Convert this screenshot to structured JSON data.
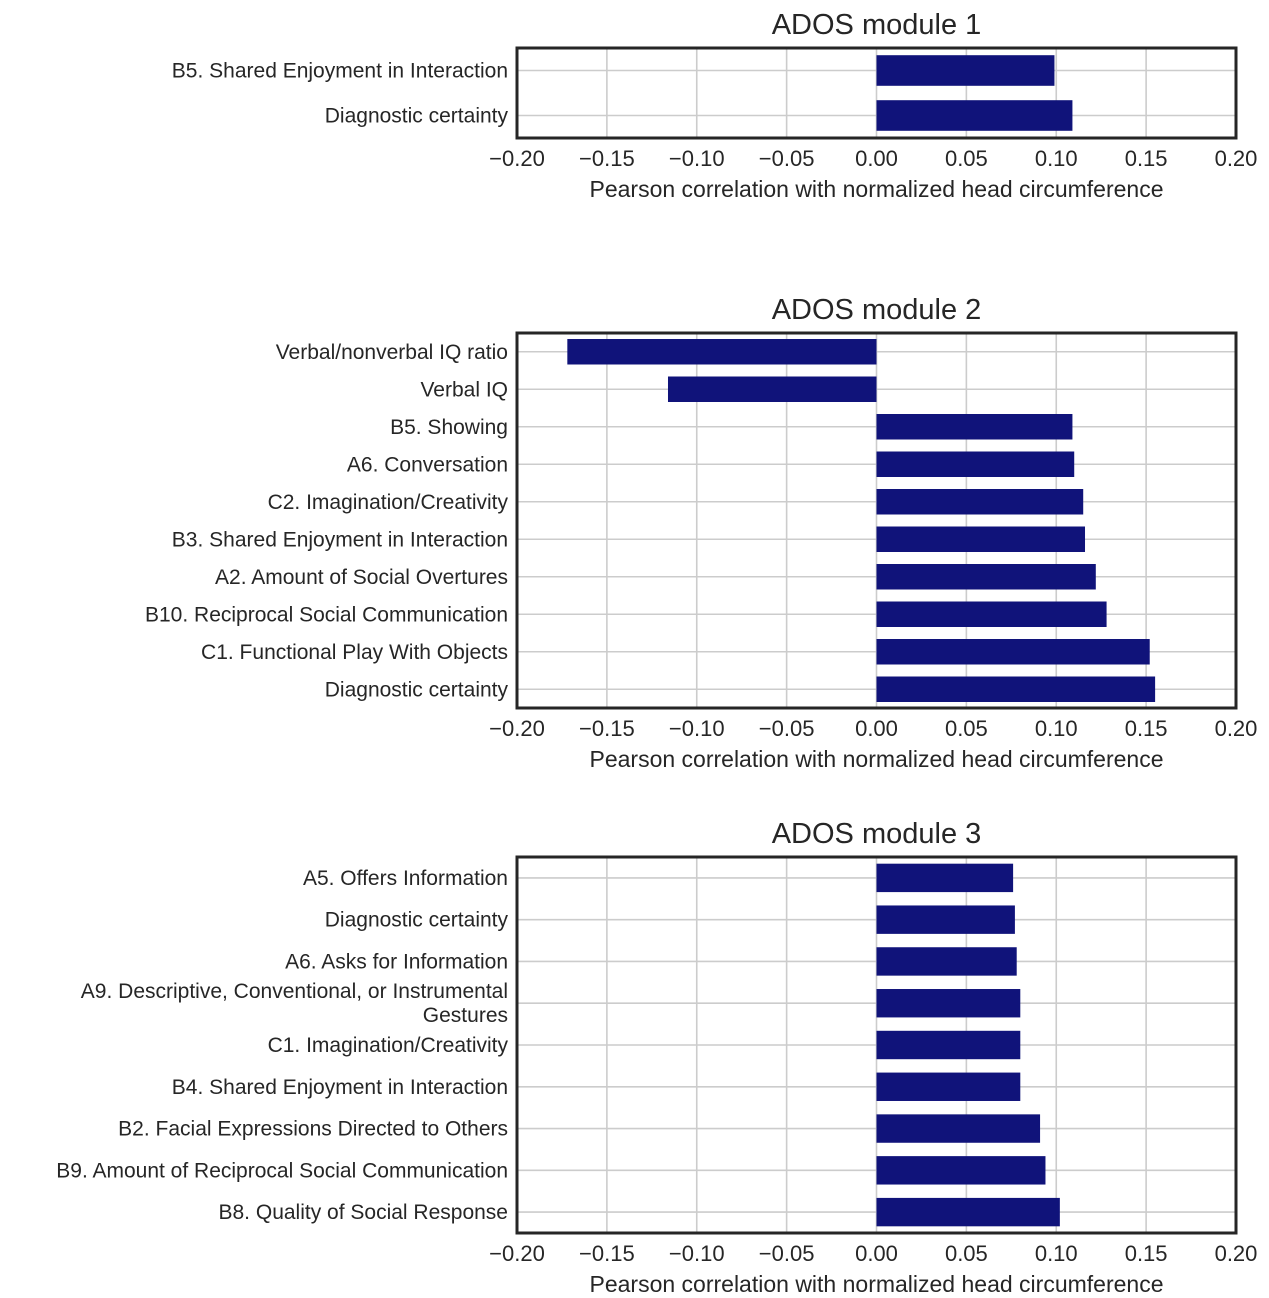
{
  "chart_data": [
    {
      "type": "bar",
      "orientation": "horizontal",
      "title": "ADOS module 1",
      "categories": [
        "B5. Shared Enjoyment in Interaction",
        "Diagnostic certainty"
      ],
      "values": [
        0.099,
        0.109
      ],
      "xlabel": "Pearson correlation with normalized head circumference",
      "xlim": [
        -0.2,
        0.2
      ],
      "xticks": [
        -0.2,
        -0.15,
        -0.1,
        -0.05,
        0.0,
        0.05,
        0.1,
        0.15,
        0.2
      ],
      "xtick_labels": [
        "−0.20",
        "−0.15",
        "−0.10",
        "−0.05",
        "0.00",
        "0.05",
        "0.10",
        "0.15",
        "0.20"
      ],
      "bar_color": "#10137a",
      "grid": true
    },
    {
      "type": "bar",
      "orientation": "horizontal",
      "title": "ADOS module 2",
      "categories": [
        "Verbal/nonverbal IQ ratio",
        "Verbal IQ",
        "B5.  Showing",
        "A6. Conversation",
        "C2. Imagination/Creativity",
        "B3. Shared Enjoyment in Interaction",
        "A2. Amount of Social Overtures",
        "B10. Reciprocal Social Communication",
        "C1. Functional Play With Objects",
        "Diagnostic certainty"
      ],
      "values": [
        -0.172,
        -0.116,
        0.109,
        0.11,
        0.115,
        0.116,
        0.122,
        0.128,
        0.152,
        0.155
      ],
      "xlabel": "Pearson correlation with normalized head circumference",
      "xlim": [
        -0.2,
        0.2
      ],
      "xticks": [
        -0.2,
        -0.15,
        -0.1,
        -0.05,
        0.0,
        0.05,
        0.1,
        0.15,
        0.2
      ],
      "xtick_labels": [
        "−0.20",
        "−0.15",
        "−0.10",
        "−0.05",
        "0.00",
        "0.05",
        "0.10",
        "0.15",
        "0.20"
      ],
      "bar_color": "#10137a",
      "grid": true
    },
    {
      "type": "bar",
      "orientation": "horizontal",
      "title": "ADOS module 3",
      "categories": [
        "A5. Offers Information",
        "Diagnostic certainty",
        "A6. Asks for Information",
        "A9. Descriptive, Conventional, or Instrumental\nGestures",
        "C1. Imagination/Creativity",
        "B4. Shared Enjoyment in Interaction",
        "B2. Facial Expressions Directed to Others",
        "B9. Amount of Reciprocal Social Communication",
        "B8. Quality of Social Response"
      ],
      "values": [
        0.076,
        0.077,
        0.078,
        0.08,
        0.08,
        0.08,
        0.091,
        0.094,
        0.102
      ],
      "xlabel": "Pearson correlation with normalized head circumference",
      "xlim": [
        -0.2,
        0.2
      ],
      "xticks": [
        -0.2,
        -0.15,
        -0.1,
        -0.05,
        0.0,
        0.05,
        0.1,
        0.15,
        0.2
      ],
      "xtick_labels": [
        "−0.20",
        "−0.15",
        "−0.10",
        "−0.05",
        "0.00",
        "0.05",
        "0.10",
        "0.15",
        "0.20"
      ],
      "bar_color": "#10137a",
      "grid": true
    }
  ]
}
